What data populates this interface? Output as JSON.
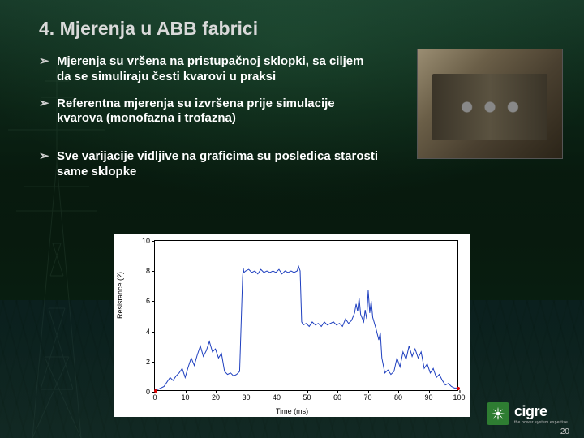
{
  "slide": {
    "title": "4. Mjerenja u ABB fabrici",
    "bullets": [
      "Mjerenja su vršena na pristupačnoj sklopki, sa ciljem da se simuliraju česti kvarovi u praksi",
      "Referentna mjerenja su izvršena prije simulacije kvarova (monofazna i trofazna)",
      "Sve varijacije vidljive na graficima su posledica starosti same sklopke"
    ],
    "page_number": "20"
  },
  "chart": {
    "type": "line",
    "xlabel": "Time (ms)",
    "ylabel": "Resistance (?)",
    "xlim": [
      0,
      100
    ],
    "ylim": [
      0,
      10
    ],
    "xtick_step": 10,
    "ytick_step": 2,
    "line_color": "#1e3fbf",
    "line_width": 1,
    "background_color": "#ffffff",
    "axis_color": "#000000",
    "tick_fontsize": 9,
    "label_fontsize": 9,
    "red_markers": [
      {
        "x": 0.2,
        "y": 0.05
      },
      {
        "x": 99.8,
        "y": 0.2
      }
    ],
    "data": [
      {
        "x": 0,
        "y": 0.1
      },
      {
        "x": 1,
        "y": 0.1
      },
      {
        "x": 3,
        "y": 0.3
      },
      {
        "x": 5,
        "y": 0.9
      },
      {
        "x": 6,
        "y": 0.7
      },
      {
        "x": 7,
        "y": 1.0
      },
      {
        "x": 8,
        "y": 1.2
      },
      {
        "x": 9,
        "y": 1.5
      },
      {
        "x": 10,
        "y": 0.9
      },
      {
        "x": 11,
        "y": 1.6
      },
      {
        "x": 12,
        "y": 2.2
      },
      {
        "x": 13,
        "y": 1.7
      },
      {
        "x": 14,
        "y": 2.4
      },
      {
        "x": 15,
        "y": 3.0
      },
      {
        "x": 16,
        "y": 2.3
      },
      {
        "x": 17,
        "y": 2.7
      },
      {
        "x": 18,
        "y": 3.3
      },
      {
        "x": 19,
        "y": 2.6
      },
      {
        "x": 20,
        "y": 2.8
      },
      {
        "x": 21,
        "y": 2.2
      },
      {
        "x": 22,
        "y": 2.5
      },
      {
        "x": 23,
        "y": 1.3
      },
      {
        "x": 24,
        "y": 1.1
      },
      {
        "x": 25,
        "y": 1.2
      },
      {
        "x": 26,
        "y": 1.0
      },
      {
        "x": 27,
        "y": 1.1
      },
      {
        "x": 28,
        "y": 1.3
      },
      {
        "x": 29,
        "y": 7.6
      },
      {
        "x": 29.2,
        "y": 8.2
      },
      {
        "x": 29.4,
        "y": 7.9
      },
      {
        "x": 30,
        "y": 8.0
      },
      {
        "x": 31,
        "y": 8.1
      },
      {
        "x": 32,
        "y": 7.9
      },
      {
        "x": 33,
        "y": 8.0
      },
      {
        "x": 34,
        "y": 7.8
      },
      {
        "x": 35,
        "y": 8.1
      },
      {
        "x": 36,
        "y": 7.9
      },
      {
        "x": 37,
        "y": 8.0
      },
      {
        "x": 38,
        "y": 7.9
      },
      {
        "x": 39,
        "y": 8.0
      },
      {
        "x": 40,
        "y": 7.9
      },
      {
        "x": 41,
        "y": 8.1
      },
      {
        "x": 42,
        "y": 7.8
      },
      {
        "x": 43,
        "y": 8.0
      },
      {
        "x": 44,
        "y": 7.9
      },
      {
        "x": 45,
        "y": 8.0
      },
      {
        "x": 46,
        "y": 7.9
      },
      {
        "x": 47,
        "y": 8.0
      },
      {
        "x": 47.5,
        "y": 8.3
      },
      {
        "x": 48,
        "y": 8.0
      },
      {
        "x": 48.5,
        "y": 4.6
      },
      {
        "x": 49,
        "y": 4.4
      },
      {
        "x": 50,
        "y": 4.5
      },
      {
        "x": 51,
        "y": 4.3
      },
      {
        "x": 52,
        "y": 4.6
      },
      {
        "x": 53,
        "y": 4.4
      },
      {
        "x": 54,
        "y": 4.5
      },
      {
        "x": 55,
        "y": 4.3
      },
      {
        "x": 56,
        "y": 4.6
      },
      {
        "x": 57,
        "y": 4.4
      },
      {
        "x": 58,
        "y": 4.5
      },
      {
        "x": 59,
        "y": 4.6
      },
      {
        "x": 60,
        "y": 4.4
      },
      {
        "x": 61,
        "y": 4.5
      },
      {
        "x": 62,
        "y": 4.3
      },
      {
        "x": 63,
        "y": 4.8
      },
      {
        "x": 64,
        "y": 4.5
      },
      {
        "x": 65,
        "y": 4.7
      },
      {
        "x": 66,
        "y": 5.2
      },
      {
        "x": 66.5,
        "y": 5.8
      },
      {
        "x": 67,
        "y": 5.3
      },
      {
        "x": 67.5,
        "y": 6.2
      },
      {
        "x": 68,
        "y": 5.1
      },
      {
        "x": 69,
        "y": 4.6
      },
      {
        "x": 69.5,
        "y": 5.4
      },
      {
        "x": 70,
        "y": 4.8
      },
      {
        "x": 70.5,
        "y": 6.7
      },
      {
        "x": 71,
        "y": 5.2
      },
      {
        "x": 71.5,
        "y": 6.0
      },
      {
        "x": 72,
        "y": 4.9
      },
      {
        "x": 73,
        "y": 4.2
      },
      {
        "x": 74,
        "y": 3.4
      },
      {
        "x": 74.5,
        "y": 3.9
      },
      {
        "x": 75,
        "y": 2.2
      },
      {
        "x": 76,
        "y": 1.2
      },
      {
        "x": 77,
        "y": 1.4
      },
      {
        "x": 78,
        "y": 1.1
      },
      {
        "x": 79,
        "y": 1.3
      },
      {
        "x": 80,
        "y": 2.2
      },
      {
        "x": 81,
        "y": 1.6
      },
      {
        "x": 82,
        "y": 2.6
      },
      {
        "x": 83,
        "y": 2.1
      },
      {
        "x": 84,
        "y": 3.0
      },
      {
        "x": 85,
        "y": 2.3
      },
      {
        "x": 86,
        "y": 2.8
      },
      {
        "x": 87,
        "y": 2.2
      },
      {
        "x": 88,
        "y": 2.6
      },
      {
        "x": 89,
        "y": 1.5
      },
      {
        "x": 90,
        "y": 1.8
      },
      {
        "x": 91,
        "y": 1.2
      },
      {
        "x": 92,
        "y": 1.5
      },
      {
        "x": 93,
        "y": 0.9
      },
      {
        "x": 94,
        "y": 1.1
      },
      {
        "x": 95,
        "y": 0.7
      },
      {
        "x": 96,
        "y": 0.4
      },
      {
        "x": 97,
        "y": 0.5
      },
      {
        "x": 98,
        "y": 0.3
      },
      {
        "x": 99,
        "y": 0.2
      },
      {
        "x": 100,
        "y": 0.2
      }
    ]
  },
  "logo": {
    "text": "cigre",
    "tagline": "the power system expertise",
    "mark_color": "#2e7d32"
  }
}
